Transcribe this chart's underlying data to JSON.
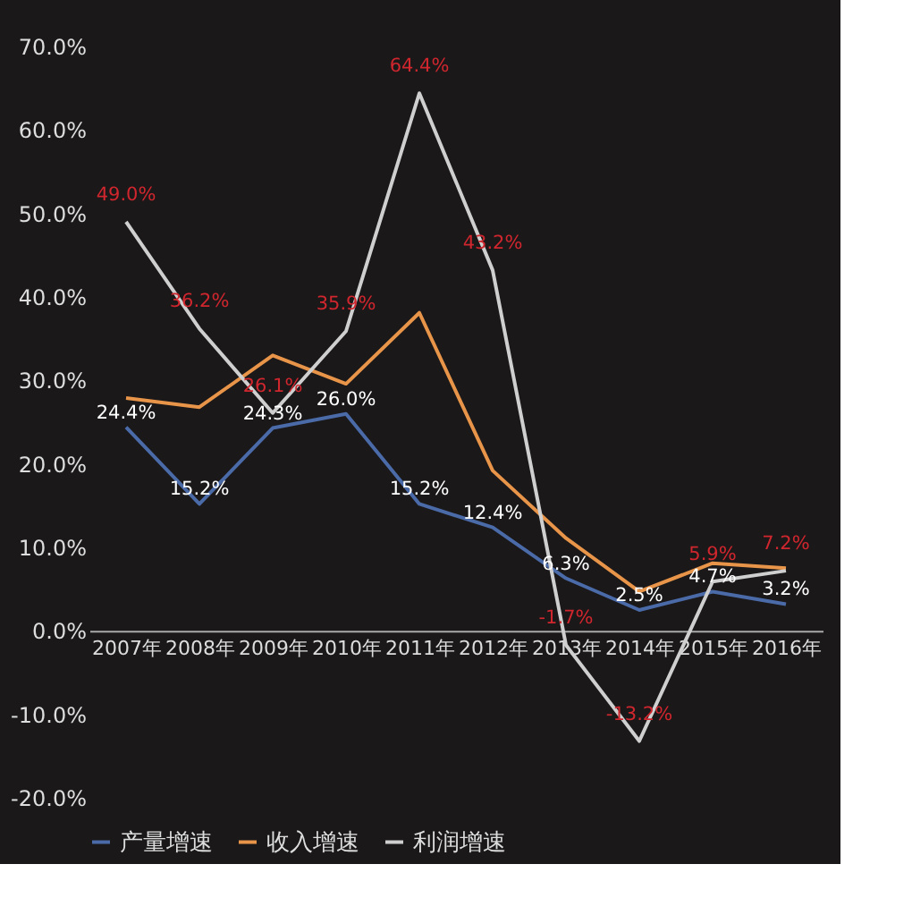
{
  "chart_data": {
    "type": "line",
    "categories": [
      "2007年",
      "2008年",
      "2009年",
      "2010年",
      "2011年",
      "2012年",
      "2013年",
      "2014年",
      "2015年",
      "2016年"
    ],
    "series": [
      {
        "name": "产量增速",
        "color": "#4a6aa8",
        "values": [
          24.4,
          15.2,
          24.3,
          26.0,
          15.2,
          12.4,
          6.3,
          2.5,
          4.7,
          3.2
        ],
        "value_labels": [
          "24.4%",
          "15.2%",
          "24.3%",
          "26.0%",
          "15.2%",
          "12.4%",
          "6.3%",
          "2.5%",
          "4.7%",
          "3.2%"
        ]
      },
      {
        "name": "收入增速",
        "color": "#e8954a",
        "values": [
          27.9,
          26.8,
          33.0,
          29.6,
          38.1,
          19.2,
          11.1,
          4.7,
          8.1,
          7.5
        ]
      },
      {
        "name": "利润增速",
        "color": "#cfcfcf",
        "values": [
          49.0,
          36.2,
          26.1,
          35.9,
          64.4,
          43.2,
          -1.7,
          -13.2,
          5.9,
          7.2
        ],
        "value_labels": [
          "49.0%",
          "36.2%",
          "26.1%",
          "35.9%",
          "64.4%",
          "43.2%",
          "-1.7%",
          "-13.2%",
          "5.9%",
          "7.2%"
        ]
      }
    ],
    "ylim": [
      -20,
      70
    ],
    "yticks": [
      {
        "value": -20,
        "label": "-20.0%"
      },
      {
        "value": -10,
        "label": "-10.0%"
      },
      {
        "value": 0,
        "label": "0.0%"
      },
      {
        "value": 10,
        "label": "10.0%"
      },
      {
        "value": 20,
        "label": "20.0%"
      },
      {
        "value": 30,
        "label": "30.0%"
      },
      {
        "value": 40,
        "label": "40.0%"
      },
      {
        "value": 50,
        "label": "50.0%"
      },
      {
        "value": 60,
        "label": "60.0%"
      },
      {
        "value": 70,
        "label": "70.0%"
      }
    ],
    "grid": false,
    "legend": "bottom",
    "marker": "none",
    "line_style": "solid"
  }
}
